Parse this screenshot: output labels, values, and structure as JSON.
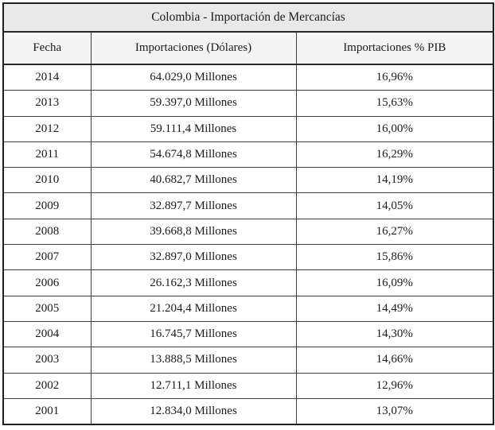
{
  "table": {
    "title": "Colombia - Importación de Mercancías",
    "headers": [
      "Fecha",
      "Importaciones (Dólares)",
      "Importaciones % PIB"
    ],
    "rows": [
      {
        "fecha": "2014",
        "importaciones": "64.029,0 Millones",
        "pib": "16,96%"
      },
      {
        "fecha": "2013",
        "importaciones": "59.397,0 Millones",
        "pib": "15,63%"
      },
      {
        "fecha": "2012",
        "importaciones": "59.111,4 Millones",
        "pib": "16,00%"
      },
      {
        "fecha": "2011",
        "importaciones": "54.674,8 Millones",
        "pib": "16,29%"
      },
      {
        "fecha": "2010",
        "importaciones": "40.682,7 Millones",
        "pib": "14,19%"
      },
      {
        "fecha": "2009",
        "importaciones": "32.897,7 Millones",
        "pib": "14,05%"
      },
      {
        "fecha": "2008",
        "importaciones": "39.668,8 Millones",
        "pib": "16,27%"
      },
      {
        "fecha": "2007",
        "importaciones": "32.897,0 Millones",
        "pib": "15,86%"
      },
      {
        "fecha": "2006",
        "importaciones": "26.162,3 Millones",
        "pib": "16,09%"
      },
      {
        "fecha": "2005",
        "importaciones": "21.204,4 Millones",
        "pib": "14,49%"
      },
      {
        "fecha": "2004",
        "importaciones": "16.745,7 Millones",
        "pib": "14,30%"
      },
      {
        "fecha": "2003",
        "importaciones": "13.888,5 Millones",
        "pib": "14,66%"
      },
      {
        "fecha": "2002",
        "importaciones": "12.711,1 Millones",
        "pib": "12,96%"
      },
      {
        "fecha": "2001",
        "importaciones": "12.834,0 Millones",
        "pib": "13,07%"
      }
    ]
  },
  "colors": {
    "title_bg": "#e9e9e9",
    "header_bg": "#f4f4f4",
    "row_bg": "#ffffff",
    "border_inner": "#3f3f3f",
    "border_outer": "#1f1f1f",
    "text": "#1b1b1b"
  },
  "chart_data": {
    "type": "table",
    "title": "Colombia - Importación de Mercancías",
    "columns": [
      "Fecha",
      "Importaciones (Dólares)",
      "Importaciones % PIB"
    ],
    "years": [
      2014,
      2013,
      2012,
      2011,
      2010,
      2009,
      2008,
      2007,
      2006,
      2005,
      2004,
      2003,
      2002,
      2001
    ],
    "importaciones_millones_usd": [
      64029.0,
      59397.0,
      59111.4,
      54674.8,
      40682.7,
      32897.7,
      39668.8,
      32897.0,
      26162.3,
      21204.4,
      16745.7,
      13888.5,
      12711.1,
      12834.0
    ],
    "importaciones_pct_pib": [
      16.96,
      15.63,
      16.0,
      16.29,
      14.19,
      14.05,
      16.27,
      15.86,
      16.09,
      14.49,
      14.3,
      14.66,
      12.96,
      13.07
    ]
  }
}
